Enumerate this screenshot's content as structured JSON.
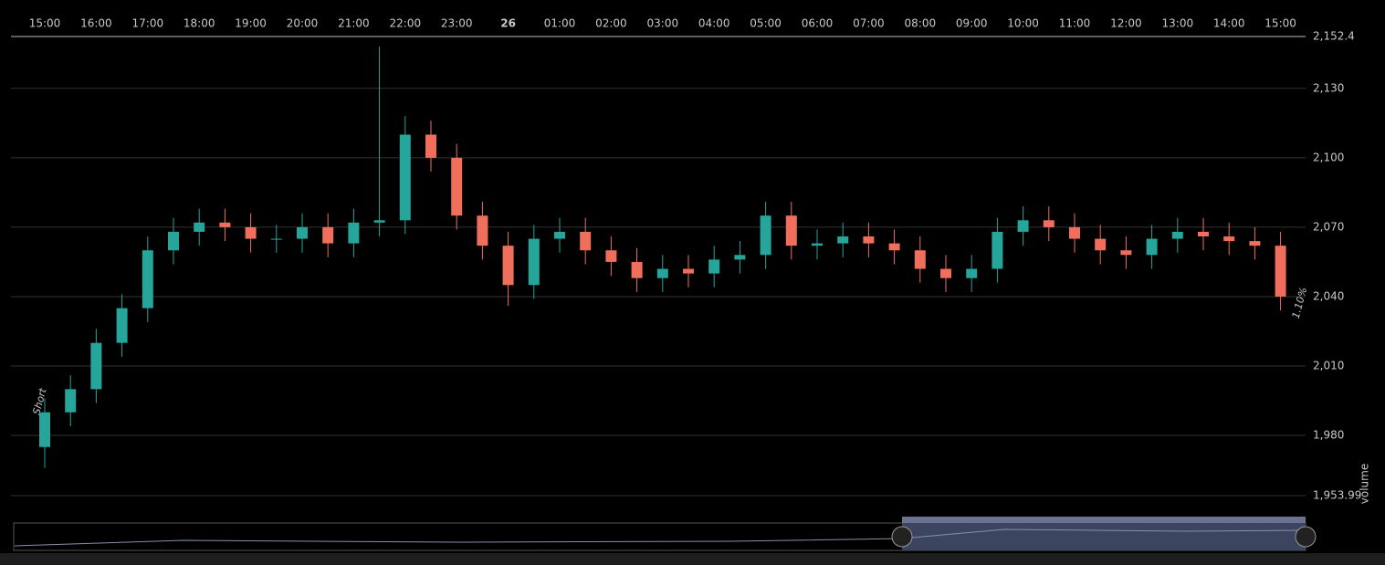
{
  "chart_data": {
    "type": "candlestick",
    "categories": [
      "15:00",
      null,
      "16:00",
      null,
      "17:00",
      null,
      "18:00",
      null,
      "19:00",
      null,
      "20:00",
      null,
      "21:00",
      null,
      "22:00",
      null,
      "23:00",
      null,
      "26",
      null,
      "01:00",
      null,
      "02:00",
      null,
      "03:00",
      null,
      "04:00",
      null,
      "05:00",
      null,
      "06:00",
      null,
      "07:00",
      null,
      "08:00",
      null,
      "09:00",
      null,
      "10:00",
      null,
      "11:00",
      null,
      "12:00",
      null,
      "13:00",
      null,
      "14:00",
      null,
      "15:00"
    ],
    "open": [
      1975,
      1990,
      2000,
      2020,
      2035,
      2060,
      2068,
      2072,
      2070,
      2065,
      2065,
      2070,
      2063,
      2072,
      2073,
      2110,
      2100,
      2075,
      2062,
      2045,
      2065,
      2068,
      2060,
      2055,
      2048,
      2052,
      2050,
      2056,
      2058,
      2075,
      2062,
      2063,
      2066,
      2063,
      2060,
      2052,
      2048,
      2052,
      2068,
      2073,
      2070,
      2065,
      2060,
      2058,
      2065,
      2068,
      2066,
      2064,
      2062
    ],
    "high": [
      1996,
      2006,
      2026,
      2041,
      2066,
      2074,
      2078,
      2078,
      2076,
      2071,
      2076,
      2076,
      2078,
      2148,
      2118,
      2116,
      2106,
      2081,
      2068,
      2071,
      2074,
      2074,
      2066,
      2061,
      2058,
      2058,
      2062,
      2064,
      2081,
      2081,
      2069,
      2072,
      2072,
      2069,
      2066,
      2058,
      2058,
      2074,
      2079,
      2079,
      2076,
      2071,
      2066,
      2071,
      2074,
      2074,
      2072,
      2070,
      2068
    ],
    "low": [
      1966,
      1984,
      1994,
      2014,
      2029,
      2054,
      2062,
      2064,
      2059,
      2059,
      2059,
      2057,
      2057,
      2066,
      2067,
      2094,
      2069,
      2056,
      2036,
      2039,
      2059,
      2054,
      2049,
      2042,
      2042,
      2044,
      2044,
      2050,
      2052,
      2056,
      2056,
      2057,
      2057,
      2054,
      2046,
      2042,
      2042,
      2046,
      2062,
      2064,
      2059,
      2054,
      2052,
      2052,
      2059,
      2060,
      2058,
      2056,
      2034
    ],
    "close": [
      1990,
      2000,
      2020,
      2035,
      2060,
      2068,
      2072,
      2070,
      2065,
      2065,
      2070,
      2063,
      2072,
      2073,
      2110,
      2100,
      2075,
      2062,
      2045,
      2065,
      2068,
      2060,
      2055,
      2048,
      2052,
      2050,
      2056,
      2058,
      2075,
      2062,
      2063,
      2066,
      2063,
      2060,
      2052,
      2048,
      2052,
      2068,
      2073,
      2070,
      2065,
      2060,
      2058,
      2065,
      2068,
      2066,
      2064,
      2062,
      2040
    ],
    "up_color": "#26a69a",
    "down_color": "#ef6f5c",
    "ylim": [
      1953.99,
      2152.4
    ],
    "yticks": [
      {
        "value": 1953.99,
        "label": "1,953.99"
      },
      {
        "value": 1980,
        "label": "1,980"
      },
      {
        "value": 2010,
        "label": "2,010"
      },
      {
        "value": 2040,
        "label": "2,040"
      },
      {
        "value": 2070,
        "label": "2,070"
      },
      {
        "value": 2100,
        "label": "2,100"
      },
      {
        "value": 2130,
        "label": "2,130"
      },
      {
        "value": 2152.4,
        "label": "2,152.4"
      }
    ],
    "grid": true,
    "volume_label": "volume",
    "annotations": [
      "Short",
      "1.10%"
    ]
  }
}
